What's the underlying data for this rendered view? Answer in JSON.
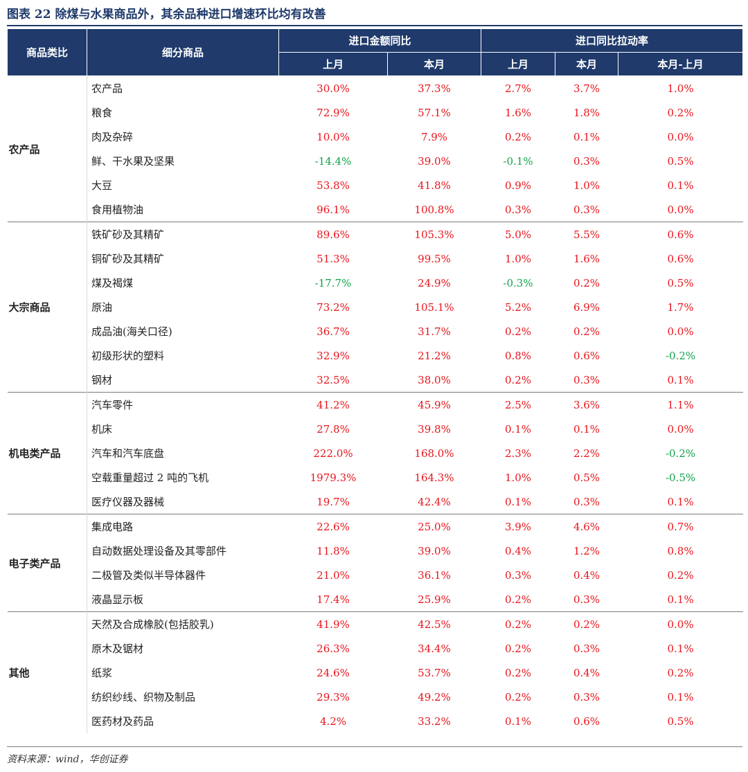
{
  "title": "图表 22   除煤与水果商品外，其余品种进口增速环比均有改善",
  "header": {
    "category": "商品类比",
    "item": "细分商品",
    "group1": "进口金额同比",
    "group2": "进口同比拉动率",
    "prev": "上月",
    "curr": "本月",
    "prev2": "上月",
    "curr2": "本月",
    "diff": "本月-上月"
  },
  "groups": [
    {
      "name": "农产品",
      "rows": [
        {
          "item": "农产品",
          "a": "30.0%",
          "b": "37.3%",
          "c": "2.7%",
          "d": "3.7%",
          "e": "1.0%"
        },
        {
          "item": "粮食",
          "a": "72.9%",
          "b": "57.1%",
          "c": "1.6%",
          "d": "1.8%",
          "e": "0.2%"
        },
        {
          "item": "肉及杂碎",
          "a": "10.0%",
          "b": "7.9%",
          "c": "0.2%",
          "d": "0.1%",
          "e": "0.0%"
        },
        {
          "item": "鲜、干水果及坚果",
          "a": "-14.4%",
          "b": "39.0%",
          "c": "-0.1%",
          "d": "0.3%",
          "e": "0.5%"
        },
        {
          "item": "大豆",
          "a": "53.8%",
          "b": "41.8%",
          "c": "0.9%",
          "d": "1.0%",
          "e": "0.1%"
        },
        {
          "item": "食用植物油",
          "a": "96.1%",
          "b": "100.8%",
          "c": "0.3%",
          "d": "0.3%",
          "e": "0.0%"
        }
      ]
    },
    {
      "name": "大宗商品",
      "rows": [
        {
          "item": "铁矿砂及其精矿",
          "a": "89.6%",
          "b": "105.3%",
          "c": "5.0%",
          "d": "5.5%",
          "e": "0.6%"
        },
        {
          "item": "铜矿砂及其精矿",
          "a": "51.3%",
          "b": "99.5%",
          "c": "1.0%",
          "d": "1.6%",
          "e": "0.6%"
        },
        {
          "item": "煤及褐煤",
          "a": "-17.7%",
          "b": "24.9%",
          "c": "-0.3%",
          "d": "0.2%",
          "e": "0.5%"
        },
        {
          "item": "原油",
          "a": "73.2%",
          "b": "105.1%",
          "c": "5.2%",
          "d": "6.9%",
          "e": "1.7%"
        },
        {
          "item": "成品油(海关口径)",
          "a": "36.7%",
          "b": "31.7%",
          "c": "0.2%",
          "d": "0.2%",
          "e": "0.0%"
        },
        {
          "item": "初级形状的塑料",
          "a": "32.9%",
          "b": "21.2%",
          "c": "0.8%",
          "d": "0.6%",
          "e": "-0.2%"
        },
        {
          "item": "钢材",
          "a": "32.5%",
          "b": "38.0%",
          "c": "0.2%",
          "d": "0.3%",
          "e": "0.1%"
        }
      ]
    },
    {
      "name": "机电类产品",
      "rows": [
        {
          "item": "汽车零件",
          "a": "41.2%",
          "b": "45.9%",
          "c": "2.5%",
          "d": "3.6%",
          "e": "1.1%"
        },
        {
          "item": "机床",
          "a": "27.8%",
          "b": "39.8%",
          "c": "0.1%",
          "d": "0.1%",
          "e": "0.0%"
        },
        {
          "item": "汽车和汽车底盘",
          "a": "222.0%",
          "b": "168.0%",
          "c": "2.3%",
          "d": "2.2%",
          "e": "-0.2%"
        },
        {
          "item": "空载重量超过 2 吨的飞机",
          "a": "1979.3%",
          "b": "164.3%",
          "c": "1.0%",
          "d": "0.5%",
          "e": "-0.5%"
        },
        {
          "item": "医疗仪器及器械",
          "a": "19.7%",
          "b": "42.4%",
          "c": "0.1%",
          "d": "0.3%",
          "e": "0.1%"
        }
      ]
    },
    {
      "name": "电子类产品",
      "rows": [
        {
          "item": "集成电路",
          "a": "22.6%",
          "b": "25.0%",
          "c": "3.9%",
          "d": "4.6%",
          "e": "0.7%"
        },
        {
          "item": "自动数据处理设备及其零部件",
          "a": "11.8%",
          "b": "39.0%",
          "c": "0.4%",
          "d": "1.2%",
          "e": "0.8%"
        },
        {
          "item": "二极管及类似半导体器件",
          "a": "21.0%",
          "b": "36.1%",
          "c": "0.3%",
          "d": "0.4%",
          "e": "0.2%"
        },
        {
          "item": "液晶显示板",
          "a": "17.4%",
          "b": "25.9%",
          "c": "0.2%",
          "d": "0.3%",
          "e": "0.1%"
        }
      ]
    },
    {
      "name": "其他",
      "rows": [
        {
          "item": "天然及合成橡胶(包括胶乳)",
          "a": "41.9%",
          "b": "42.5%",
          "c": "0.2%",
          "d": "0.2%",
          "e": "0.0%"
        },
        {
          "item": "原木及锯材",
          "a": "26.3%",
          "b": "34.4%",
          "c": "0.2%",
          "d": "0.3%",
          "e": "0.1%"
        },
        {
          "item": "纸浆",
          "a": "24.6%",
          "b": "53.7%",
          "c": "0.2%",
          "d": "0.4%",
          "e": "0.2%"
        },
        {
          "item": "纺织纱线、织物及制品",
          "a": "29.3%",
          "b": "49.2%",
          "c": "0.2%",
          "d": "0.3%",
          "e": "0.1%"
        },
        {
          "item": "医药材及药品",
          "a": "4.2%",
          "b": "33.2%",
          "c": "0.1%",
          "d": "0.6%",
          "e": "0.5%"
        }
      ]
    }
  ],
  "colors": {
    "header_bg": "#1f3a6b",
    "positive": "#e8141b",
    "negative": "#11a34a"
  },
  "source": "资料来源：wind，华创证券"
}
